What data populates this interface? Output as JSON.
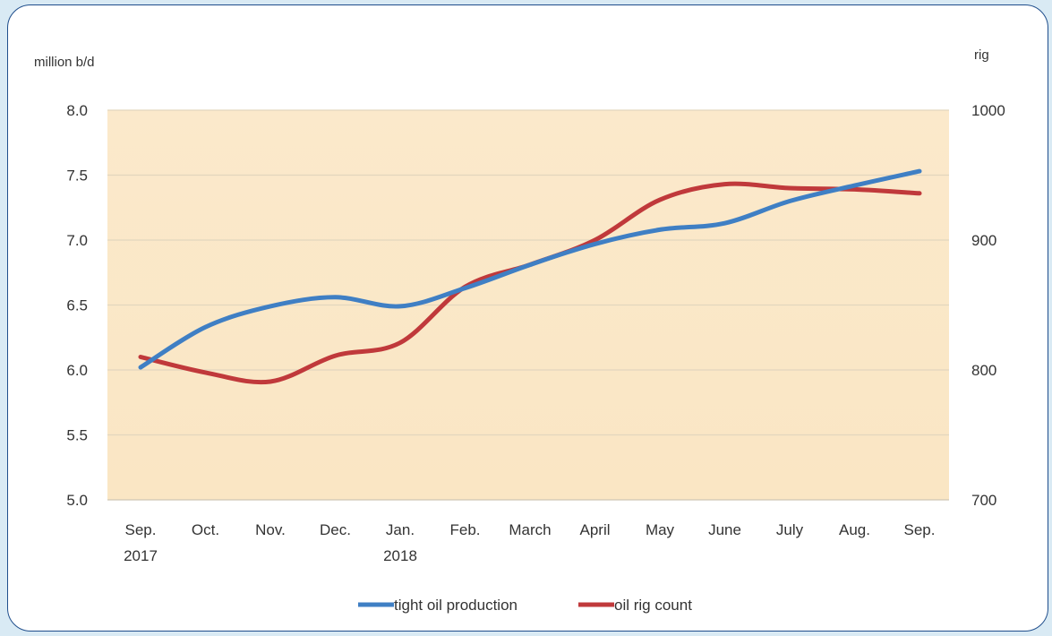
{
  "chart_data": {
    "type": "line",
    "categories": [
      [
        "Sep.",
        "2017"
      ],
      [
        "Oct."
      ],
      [
        "Nov."
      ],
      [
        "Dec."
      ],
      [
        "Jan.",
        "2018"
      ],
      [
        "Feb."
      ],
      [
        "March"
      ],
      [
        "April"
      ],
      [
        "May"
      ],
      [
        "June"
      ],
      [
        "July"
      ],
      [
        "Aug."
      ],
      [
        "Sep."
      ]
    ],
    "y_left": {
      "unit_label": "million b/d",
      "range": [
        5.0,
        8.0
      ],
      "ticks": [
        "5.0",
        "5.5",
        "6.0",
        "6.5",
        "7.0",
        "7.5",
        "8.0"
      ]
    },
    "y_right": {
      "unit_label": "rig",
      "range": [
        700,
        1000
      ],
      "ticks": [
        "700",
        "800",
        "900",
        "1000"
      ]
    },
    "grid": true,
    "legend_position": "bottom",
    "series": [
      {
        "name": "tight oil production",
        "axis": "left",
        "color": "#3f7fc4",
        "values": [
          6.02,
          6.33,
          6.49,
          6.56,
          6.49,
          6.63,
          6.81,
          6.97,
          7.08,
          7.13,
          7.3,
          7.42,
          7.53
        ]
      },
      {
        "name": "oil rig count",
        "axis": "right",
        "color": "#c0393b",
        "values": [
          810,
          798,
          791,
          811,
          821,
          864,
          881,
          900,
          931,
          943,
          940,
          939,
          936
        ]
      }
    ]
  }
}
